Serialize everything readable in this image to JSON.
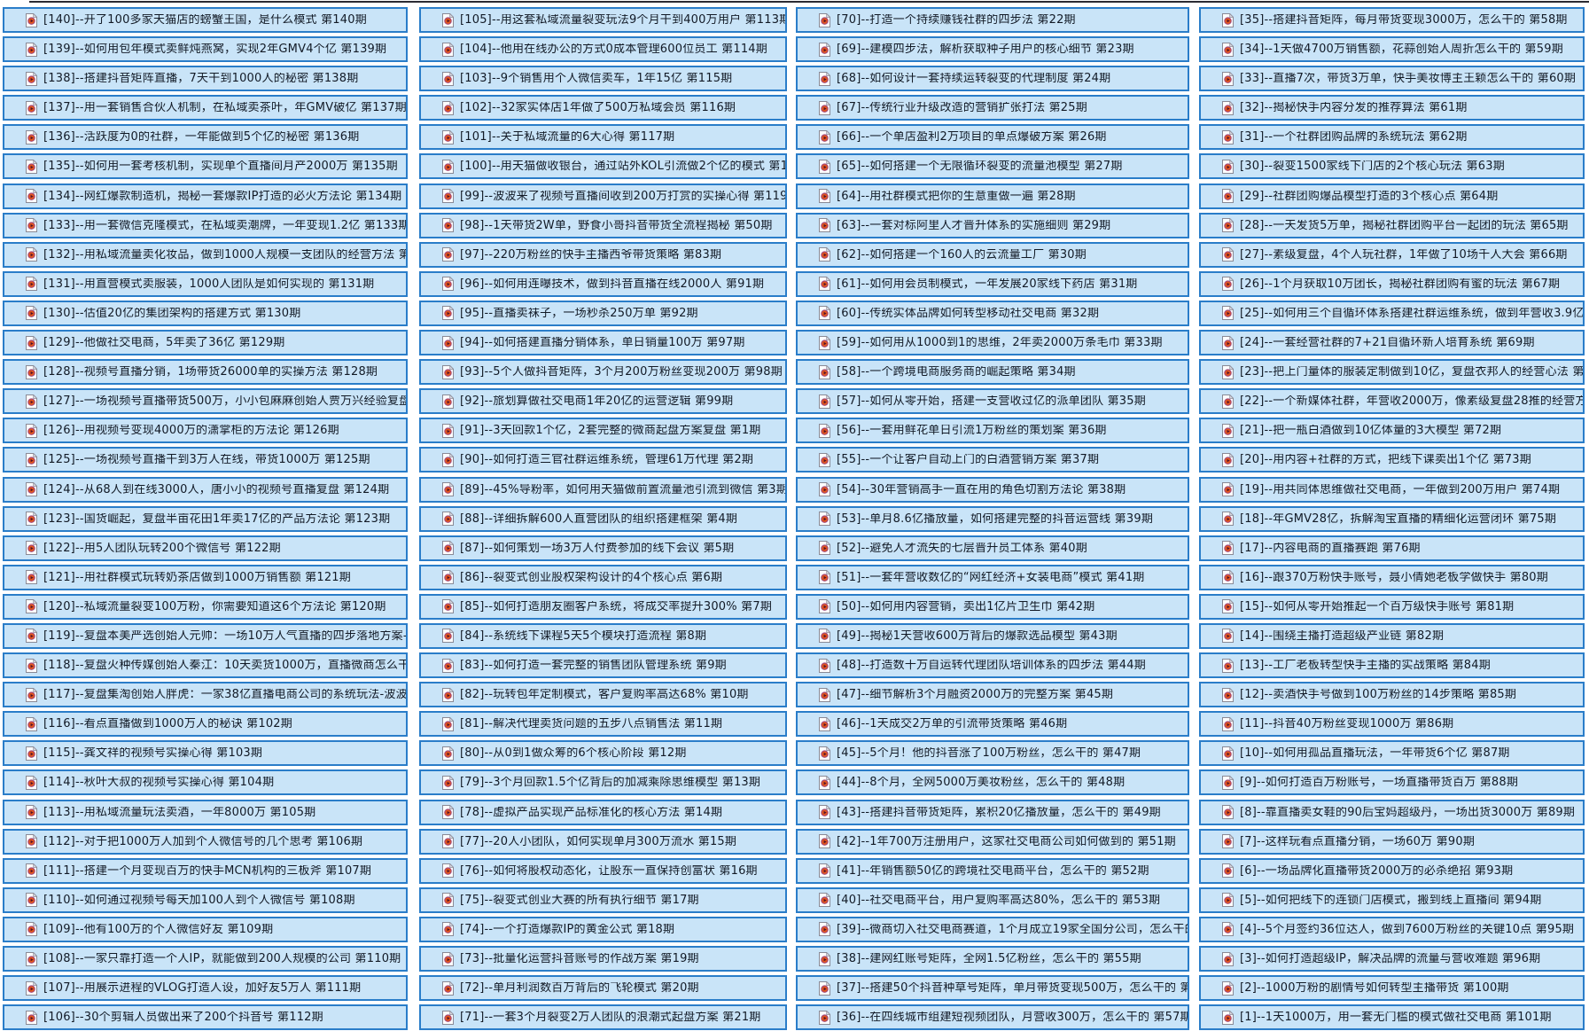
{
  "colors": {
    "item_fill": "#c9e4f8",
    "item_border": "#2a7dc9",
    "item_text": "#121a26",
    "icon_disc": "#e4571c",
    "icon_ring": "#a0487e",
    "top_line": "#2b2b33"
  },
  "list": {
    "item_count": 140,
    "icon": "media-file-icon",
    "columns": [
      {
        "items": [
          "[140]--开了100多家天猫店的螃蟹王国，是什么模式 第140期",
          "[139]--如何用包年模式卖鲜炖燕窝，实现2年GMV4个亿 第139期",
          "[138]--搭建抖音矩阵直播，7天干到1000人的秘密 第138期",
          "[137]--用一套销售合伙人机制，在私域卖茶叶，年GMV破亿 第137期",
          "[136]--活跃度为0的社群，一年能做到5个亿的秘密 第136期",
          "[135]--如何用一套考核机制，实现单个直播间月产2000万 第135期",
          "[134]--网红爆款制造机，揭秘一套爆款IP打造的必火方法论 第134期",
          "[133]--用一套微信克隆模式，在私域卖潮牌，一年变现1.2亿 第133期",
          "[132]--用私域流量卖化妆品，做到1000人规模一支团队的经营方法 第13",
          "[131]--用直营模式卖服装，1000人团队是如何实现的 第131期",
          "[130]--估值20亿的集团架构的搭建方式 第130期",
          "[129]--他做社交电商，5年卖了36亿 第129期",
          "[128]--视频号直播分销，1场带货26000单的实操方法 第128期",
          "[127]--一场视频号直播带货500万，小小包麻麻创始人贾万兴经验复盘 第1",
          "[126]--用视频号变现4000万的潇掌柜的方法论 第126期",
          "[125]--一场视频号直播干到3万人在线，带货1000万 第125期",
          "[124]--从68人到在线3000人，唐小小的视频号直播复盘 第124期",
          "[123]--国货崛起，复盘半亩花田1年卖17亿的产品方法论 第123期",
          "[122]--用5人团队玩转200个微信号 第122期",
          "[121]--用社群模式玩转奶茶店做到1000万销售额 第121期",
          "[120]--私域流量裂变100万粉，你需要知道这6个方法论 第120期",
          "[119]--复盘本美严选创始人元帅：一场10万人气直播的四步落地方案-波波来",
          "[118]--复盘火种传媒创始人秦江：10天卖货1000万，直播微商怎么干-波",
          "[117]--复盘集淘创始人胖虎：一家38亿直播电商公司的系统玩法-波波来了第",
          "[116]--看点直播做到1000万人的秘诀 第102期",
          "[115]--龚文祥的视频号实操心得 第103期",
          "[114]--秋叶大叔的视频号实操心得 第104期",
          "[113]--用私域流量玩法卖酒，一年8000万 第105期",
          "[112]--对于把1000万人加到个人微信号的几个思考 第106期",
          "[111]--搭建一个月变现百万的快手MCN机构的三板斧 第107期",
          "[110]--如何通过视频号每天加100人到个人微信号 第108期",
          "[109]--他有100万的个人微信好友 第109期",
          "[108]--一家只靠打造一个人IP，就能做到200人规模的公司 第110期",
          "[107]--用展示进程的VLOG打造人设，加好友5万人 第111期",
          "[106]--30个剪辑人员做出来了200个抖音号 第112期"
        ]
      },
      {
        "items": [
          "[105]--用这套私域流量裂变玩法9个月干到400万用户 第113期",
          "[104]--他用在线办公的方式0成本管理600位员工 第114期",
          "[103]--9个销售用个人微信卖车，1年15亿 第115期",
          "[102]--32家实体店1年做了500万私域会员 第116期",
          "[101]--关于私域流量的6大心得 第117期",
          "[100]--用天猫做收银台，通过站外KOL引流做2个亿的模式 第118期",
          "[99]--波波来了视频号直播间收到200万打赏的实操心得 第119期",
          "[98]--1天带货2W单，野食小哥抖音带货全流程揭秘 第50期",
          "[97]--220万粉丝的快手主播西爷带货策略 第83期",
          "[96]--如何用连曝技术，做到抖音直播在线2000人 第91期",
          "[95]--直播卖袜子，一场秒杀250万单 第92期",
          "[94]--如何搭建直播分销体系，单日销量100万 第97期",
          "[93]--5个人做抖音矩阵，3个月200万粉丝变现200万 第98期",
          "[92]--旅划算做社交电商1年20亿的运营逻辑 第99期",
          "[91]--3天回款1个亿，2套完整的微商起盘方案复盘 第1期",
          "[90]--如何打造三官社群运维系统，管理61万代理 第2期",
          "[89]--45%导粉率，如何用天猫做前置流量池引流到微信 第3期",
          "[88]--详细拆解600人直营团队的组织搭建框架 第4期",
          "[87]--如何策划一场3万人付费参加的线下会议 第5期",
          "[86]--裂变式创业股权架构设计的4个核心点 第6期",
          "[85]--如何打造朋友圈客户系统，将成交率提升300% 第7期",
          "[84]--系统线下课程5天5个模块打造流程 第8期",
          "[83]--如何打造一套完整的销售团队管理系统 第9期",
          "[82]--玩转包年定制模式，客户复购率高达68% 第10期",
          "[81]--解决代理卖货问题的五步八点销售法 第11期",
          "[80]--从0到1做众筹的6个核心阶段 第12期",
          "[79]--3个月回款1.5个亿背后的加减乘除思维模型 第13期",
          "[78]--虚拟产品实现产品标准化的核心方法 第14期",
          "[77]--20人小团队，如何实现单月300万流水 第15期",
          "[76]--如何将股权动态化，让股东一直保持创富状 第16期",
          "[75]--裂变式创业大赛的所有执行细节 第17期",
          "[74]--一个打造爆款IP的黄金公式 第18期",
          "[73]--批量化运营抖音账号的作战方案 第19期",
          "[72]--单月利润数百万背后的飞轮模式 第20期",
          "[71]--一套3个月裂变2万人团队的浪潮式起盘方案 第21期"
        ]
      },
      {
        "items": [
          "[70]--打造一个持续赚钱社群的四步法 第22期",
          "[69]--建模四步法，解析获取种子用户的核心细节 第23期",
          "[68]--如何设计一套持续运转裂变的代理制度 第24期",
          "[67]--传统行业升级改造的营销扩张打法 第25期",
          "[66]--一个单店盈利2万项目的单点爆破方案 第26期",
          "[65]--如何搭建一个无限循环裂变的流量池模型 第27期",
          "[64]--用社群模式把你的生意重做一遍 第28期",
          "[63]--一套对标阿里人才晋升体系的实施细则 第29期",
          "[62]--如何搭建一个160人的云流量工厂 第30期",
          "[61]--如何用会员制模式，一年发展20家线下药店 第31期",
          "[60]--传统实体品牌如何转型移动社交电商 第32期",
          "[59]--如何用从1000到1的思维，2年卖2000万条毛巾 第33期",
          "[58]--一个跨境电商服务商的崛起策略 第34期",
          "[57]--如何从零开始，搭建一支营收过亿的派单团队 第35期",
          "[56]--一套用鲜花单日引流1万粉丝的策划案 第36期",
          "[55]--一个让客户自动上门的白酒营销方案 第37期",
          "[54]--30年营销高手一直在用的角色切割方法论 第38期",
          "[53]--单月8.6亿播放量，如何搭建完整的抖音运营线 第39期",
          "[52]--避免人才流失的七层晋升员工体系 第40期",
          "[51]--一套年营收数亿的“网红经济+女装电商”模式 第41期",
          "[50]--如何用内容营销，卖出1亿片卫生巾 第42期",
          "[49]--揭秘1天营收600万背后的爆款选品模型 第43期",
          "[48]--打造数十万自运转代理团队培训体系的四步法 第44期",
          "[47]--细节解析3个月融资2000万的完整方案 第45期",
          "[46]--1天成交2万单的引流带货策略 第46期",
          "[45]--5个月！他的抖音涨了100万粉丝，怎么干的 第47期",
          "[44]--8个月，全网5000万美妆粉丝，怎么干的 第48期",
          "[43]--搭建抖音带货矩阵，累积20亿播放量，怎么干的 第49期",
          "[42]--1年700万注册用户，这家社交电商公司如何做到的 第51期",
          "[41]--年销售额50亿的跨境社交电商平台，怎么干的 第52期",
          "[40]--社交电商平台，用户复购率高达80%，怎么干的 第53期",
          "[39]--微商切入社交电商赛道，1个月成立19家全国分公司，怎么干的 第5",
          "[38]--建网红账号矩阵，全网1.5亿粉丝，怎么干的 第55期",
          "[37]--搭建50个抖音种草号矩阵，单月带货变现500万，怎么干的 第56",
          "[36]--在四线城市组建短视频团队，月营收300万，怎么干的 第57期"
        ]
      },
      {
        "items": [
          "[35]--搭建抖音矩阵，每月带货变现3000万，怎么干的 第58期",
          "[34]--1天做4700万销售额，花蒜创始人周折怎么干的 第59期",
          "[33]--直播7次，带货3万单，快手美妆博主王颖怎么干的 第60期",
          "[32]--揭秘快手内容分发的推荐算法 第61期",
          "[31]--一个社群团购品牌的系统玩法 第62期",
          "[30]--裂变1500家线下门店的2个核心玩法 第63期",
          "[29]--社群团购爆品模型打造的3个核心点 第64期",
          "[28]--一天发货5万单，揭秘社群团购平台一起团的玩法 第65期",
          "[27]--素级复盘，4个人玩社群，1年做了10场千人大会 第66期",
          "[26]--1个月获取10万团长，揭秘社群团购有蜜的玩法 第67期",
          "[25]--如何用三个自循环体系搭建社群运维系统，做到年营收3.9亿 第68",
          "[24]--一套经营社群的7+21自循环新人培育系统 第69期",
          "[23]--把上门量体的服装定制做到10亿，复盘衣邦人的经营心法 第70期",
          "[22]--一个新媒体社群，年营收2000万，像素级复盘28推的经营方法 第",
          "[21]--把一瓶白酒做到10亿体量的3大模型 第72期",
          "[20]--用内容+社群的方式，把线下课卖出1个亿 第73期",
          "[19]--用共同体思维做社交电商，一年做到200万用户 第74期",
          "[18]--年GMV28亿，拆解淘宝直播的精细化运营闭环 第75期",
          "[17]--内容电商的直播赛跑 第76期",
          "[16]--跟370万粉快手账号，聂小倩她老板学做快手 第80期",
          "[15]--如何从零开始推起一个百万级快手账号 第81期",
          "[14]--围绕主播打造超级产业链 第82期",
          "[13]--工厂老板转型快手主播的实战策略 第84期",
          "[12]--卖酒快手号做到100万粉丝的14步策略 第85期",
          "[11]--抖音40万粉丝变现1000万 第86期",
          "[10]--如何用孤品直播玩法，一年带货6个亿 第87期",
          "[9]--如何打造百万粉账号，一场直播带货百万 第88期",
          "[8]--靠直播卖女鞋的90后宝妈超级丹，一场出货3000万 第89期",
          "[7]--这样玩看点直播分销，一场60万 第90期",
          "[6]--一场品牌化直播带货2000万的必杀绝招 第93期",
          "[5]--如何把线下的连锁门店模式，搬到线上直播间 第94期",
          "[4]--5个月签约36位达人，做到7600万粉丝的关键10点 第95期",
          "[3]--如何打造超级IP，解决品牌的流量与营收难题 第96期",
          "[2]--1000万粉的剧情号如何转型主播带货 第100期",
          "[1]--1天1000万，用一套无门槛的模式做社交电商 第101期"
        ]
      }
    ]
  }
}
